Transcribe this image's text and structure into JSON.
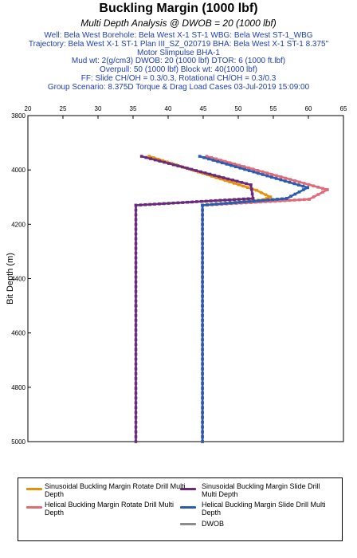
{
  "header": {
    "title": "Buckling Margin (1000 lbf)",
    "subtitle": "Multi Depth Analysis @ DWOB = 20 (1000 lbf)",
    "info_lines": [
      "Well: Bela West Borehole: Bela West X-1 ST-1 WBG: Bela West ST-1_WBG",
      "Trajectory: Bela West X-1 ST-1 Plan III_SZ_020719 BHA: Bela West X-1 ST-1 8.375\"",
      "Motor Slimpulse BHA-1",
      "Mud wt: 2(g/cm3) DWOB: 20 (1000 lbf) DTOR: 6 (1000 ft.lbf)",
      "Overpull: 50 (1000 lbf) Block wt: 40(1000 lbf)",
      "FF: Slide CH/OH = 0.3/0.3, Rotational CH/OH = 0.3/0.3",
      "Group Scenario: 8.375D Torque & Drag Load Cases 03-Jul-2019 15:09:00"
    ]
  },
  "chart_data": {
    "type": "line",
    "title": "Buckling Margin (1000 lbf)",
    "subtitle": "Multi Depth Analysis @ DWOB = 20 (1000 lbf)",
    "xlabel": "",
    "ylabel": "Bit Depth (m)",
    "xlim": [
      20,
      65
    ],
    "ylim": [
      3800,
      5000
    ],
    "y_inverted": true,
    "x_axis_position": "top",
    "grid": false,
    "x_ticks": [
      20,
      25,
      30,
      35,
      40,
      45,
      50,
      55,
      60,
      65
    ],
    "y_ticks": [
      3800,
      4000,
      4200,
      4400,
      4600,
      4800,
      5000
    ],
    "series": [
      {
        "name": "Sinusoidal Buckling Margin Rotate Drill Multi Depth",
        "color": "#e8900c",
        "x": [
          37.3,
          52.6,
          54.6,
          53.5,
          44.9,
          44.9,
          44.9
        ],
        "y": [
          3950,
          4075,
          4100,
          4110,
          4130,
          4500,
          5000
        ]
      },
      {
        "name": "Sinusoidal Buckling Margin Slide Drill Multi Depth",
        "color": "#6a2a7c",
        "x": [
          36.2,
          51.8,
          52.1,
          35.4,
          35.4,
          35.4
        ],
        "y": [
          3950,
          4055,
          4105,
          4130,
          4500,
          5000
        ]
      },
      {
        "name": "Helical Buckling Margin Rotate Drill Multi Depth",
        "color": "#e06a78",
        "x": [
          45.5,
          62.7,
          60.1,
          44.9,
          44.9,
          44.9
        ],
        "y": [
          3950,
          4073,
          4108,
          4130,
          4500,
          5000
        ]
      },
      {
        "name": "Helical Buckling Margin Slide Drill Multi Depth",
        "color": "#2a5cb0",
        "x": [
          44.5,
          59.9,
          56.9,
          44.9,
          44.9,
          44.9
        ],
        "y": [
          3950,
          4065,
          4105,
          4130,
          4500,
          5000
        ]
      }
    ],
    "legend": {
      "position": "bottom",
      "items": [
        {
          "label": "Sinusoidal Buckling Margin Rotate Drill Multi Depth",
          "color": "#e8900c"
        },
        {
          "label": "Sinusoidal Buckling Margin Slide Drill Multi Depth",
          "color": "#6a2a7c"
        },
        {
          "label": "Helical Buckling Margin Rotate Drill Multi Depth",
          "color": "#e06a78"
        },
        {
          "label": "Helical Buckling Margin Slide Drill Multi Depth",
          "color": "#2a5cb0"
        },
        {
          "label": "DWOB",
          "color": "#8c8c8c"
        }
      ]
    }
  }
}
